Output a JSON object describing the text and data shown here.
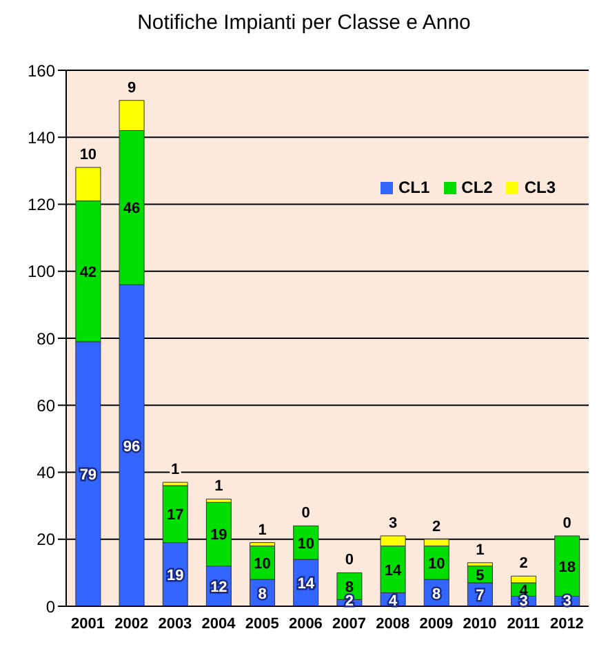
{
  "chart_data": {
    "type": "bar",
    "title": "Notifiche Impianti per Classe e Anno",
    "categories": [
      "2001",
      "2002",
      "2003",
      "2004",
      "2005",
      "2006",
      "2007",
      "2008",
      "2009",
      "2010",
      "2011",
      "2012"
    ],
    "series": [
      {
        "name": "CL1",
        "color": "#3366ff",
        "values": [
          79,
          96,
          19,
          12,
          8,
          14,
          2,
          4,
          8,
          7,
          3,
          3
        ]
      },
      {
        "name": "CL2",
        "color": "#00dd00",
        "values": [
          42,
          46,
          17,
          19,
          10,
          10,
          8,
          14,
          10,
          5,
          4,
          18
        ]
      },
      {
        "name": "CL3",
        "color": "#ffff00",
        "values": [
          10,
          9,
          1,
          1,
          1,
          0,
          0,
          3,
          2,
          1,
          2,
          0
        ]
      }
    ],
    "stacked": true,
    "data_labels": true,
    "ylim": [
      0,
      160
    ],
    "yticks": [
      0,
      20,
      40,
      60,
      80,
      100,
      120,
      140,
      160
    ],
    "grid": "y",
    "legend": "top right"
  }
}
